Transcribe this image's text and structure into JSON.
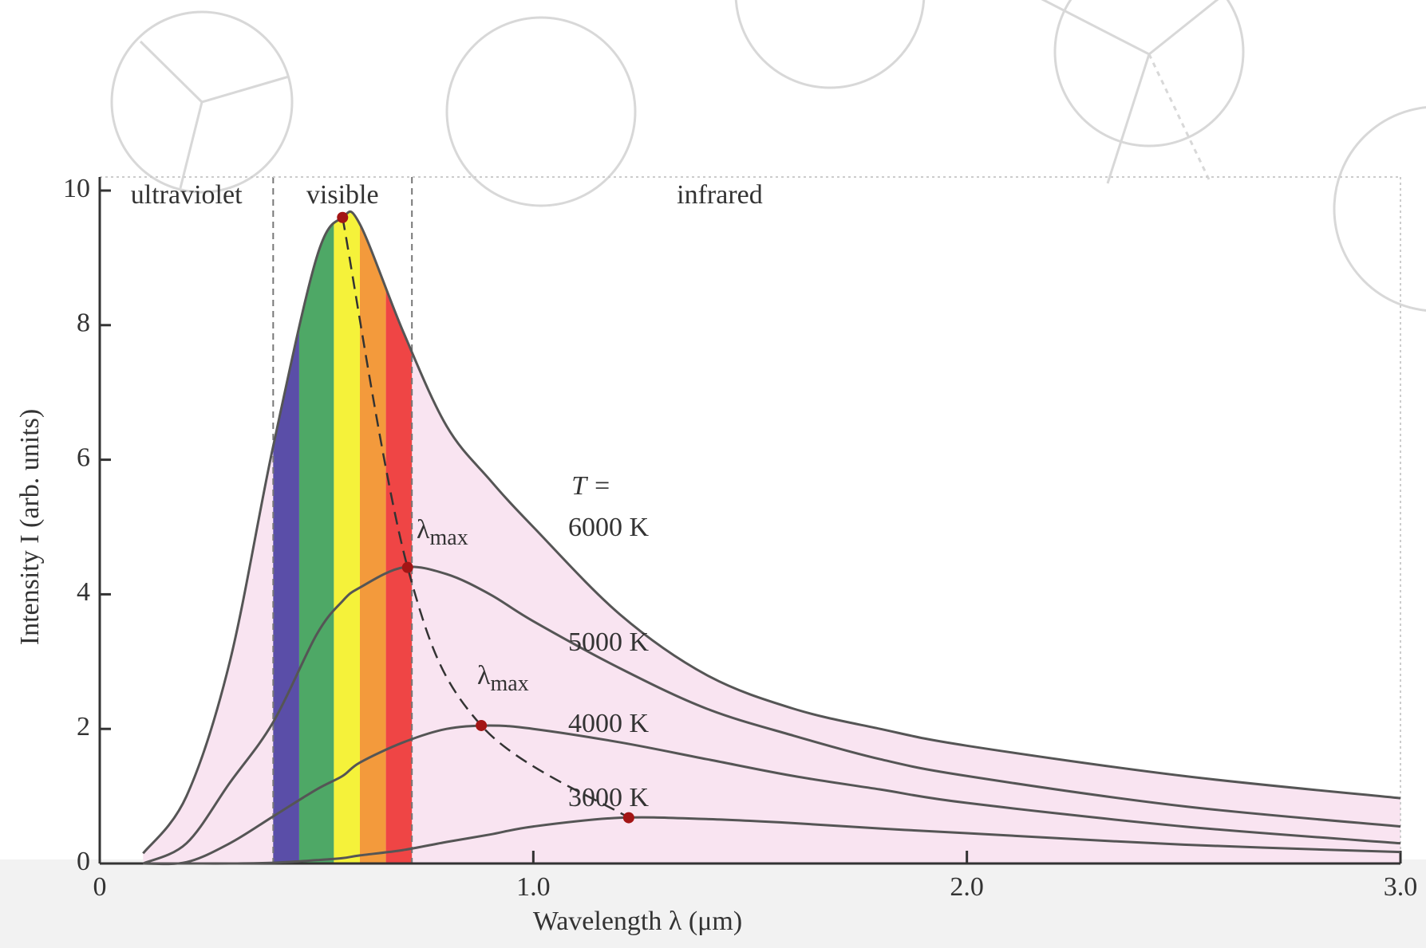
{
  "chart_data": {
    "type": "line",
    "x_label": "Wavelength λ (μm)",
    "y_label": "Intensity I (arb. units)",
    "x": [
      0.1,
      0.2,
      0.3,
      0.4,
      0.5,
      0.56,
      0.6,
      0.7,
      0.8,
      0.9,
      1.0,
      1.2,
      1.4,
      1.6,
      1.8,
      2.0,
      2.5,
      3.0
    ],
    "series": [
      {
        "name": "6000 K",
        "color": "#555555",
        "values": [
          0.15,
          1.0,
          3.0,
          6.2,
          9.0,
          9.6,
          9.5,
          7.9,
          6.5,
          5.7,
          5.0,
          3.7,
          2.8,
          2.3,
          2.0,
          1.75,
          1.3,
          0.97
        ]
      },
      {
        "name": "5000 K",
        "color": "#555555",
        "values": [
          0,
          0.3,
          1.2,
          2.1,
          3.4,
          3.9,
          4.1,
          4.4,
          4.3,
          4.0,
          3.6,
          2.9,
          2.3,
          1.9,
          1.55,
          1.3,
          0.85,
          0.55
        ]
      },
      {
        "name": "4000 K",
        "color": "#555555",
        "values": [
          0,
          0.02,
          0.3,
          0.7,
          1.1,
          1.3,
          1.5,
          1.8,
          2.0,
          2.05,
          2.0,
          1.8,
          1.55,
          1.3,
          1.1,
          0.9,
          0.55,
          0.3
        ]
      },
      {
        "name": "3000 K",
        "color": "#555555",
        "values": [
          0,
          0,
          0,
          0.01,
          0.05,
          0.08,
          0.12,
          0.2,
          0.32,
          0.43,
          0.55,
          0.68,
          0.66,
          0.6,
          0.52,
          0.45,
          0.28,
          0.17
        ]
      }
    ],
    "temperature_label": "T =",
    "area_color": "#f9e4f1",
    "peaks": {
      "x": [
        0.56,
        0.71,
        0.88,
        1.22
      ],
      "values": [
        9.6,
        4.4,
        2.05,
        0.68
      ],
      "color": "#a31515"
    },
    "lambda_max": {
      "symbol": "λ",
      "subscript": "max"
    },
    "regions": [
      {
        "label": "ultraviolet",
        "center": 0.2
      },
      {
        "label": "visible",
        "center": 0.56
      },
      {
        "label": "infrared",
        "center": 1.43
      }
    ],
    "region_boundaries": [
      0.4,
      0.72
    ],
    "spectrum_bands": [
      {
        "from": 0.4,
        "to": 0.46,
        "color": "#5a4ea8"
      },
      {
        "from": 0.46,
        "to": 0.54,
        "color": "#4ea866"
      },
      {
        "from": 0.54,
        "to": 0.6,
        "color": "#f5f23a"
      },
      {
        "from": 0.6,
        "to": 0.66,
        "color": "#f39a3c"
      },
      {
        "from": 0.66,
        "to": 0.72,
        "color": "#ef4545"
      }
    ],
    "xlim": [
      0,
      3.0
    ],
    "ylim": [
      0,
      10
    ],
    "xticks": [
      0,
      {
        "value": 1,
        "label": "1.0"
      },
      {
        "value": 2,
        "label": "2.0"
      },
      {
        "value": 3,
        "label": "3.0"
      }
    ],
    "yticks": [
      0,
      2,
      4,
      6,
      8,
      10
    ]
  }
}
